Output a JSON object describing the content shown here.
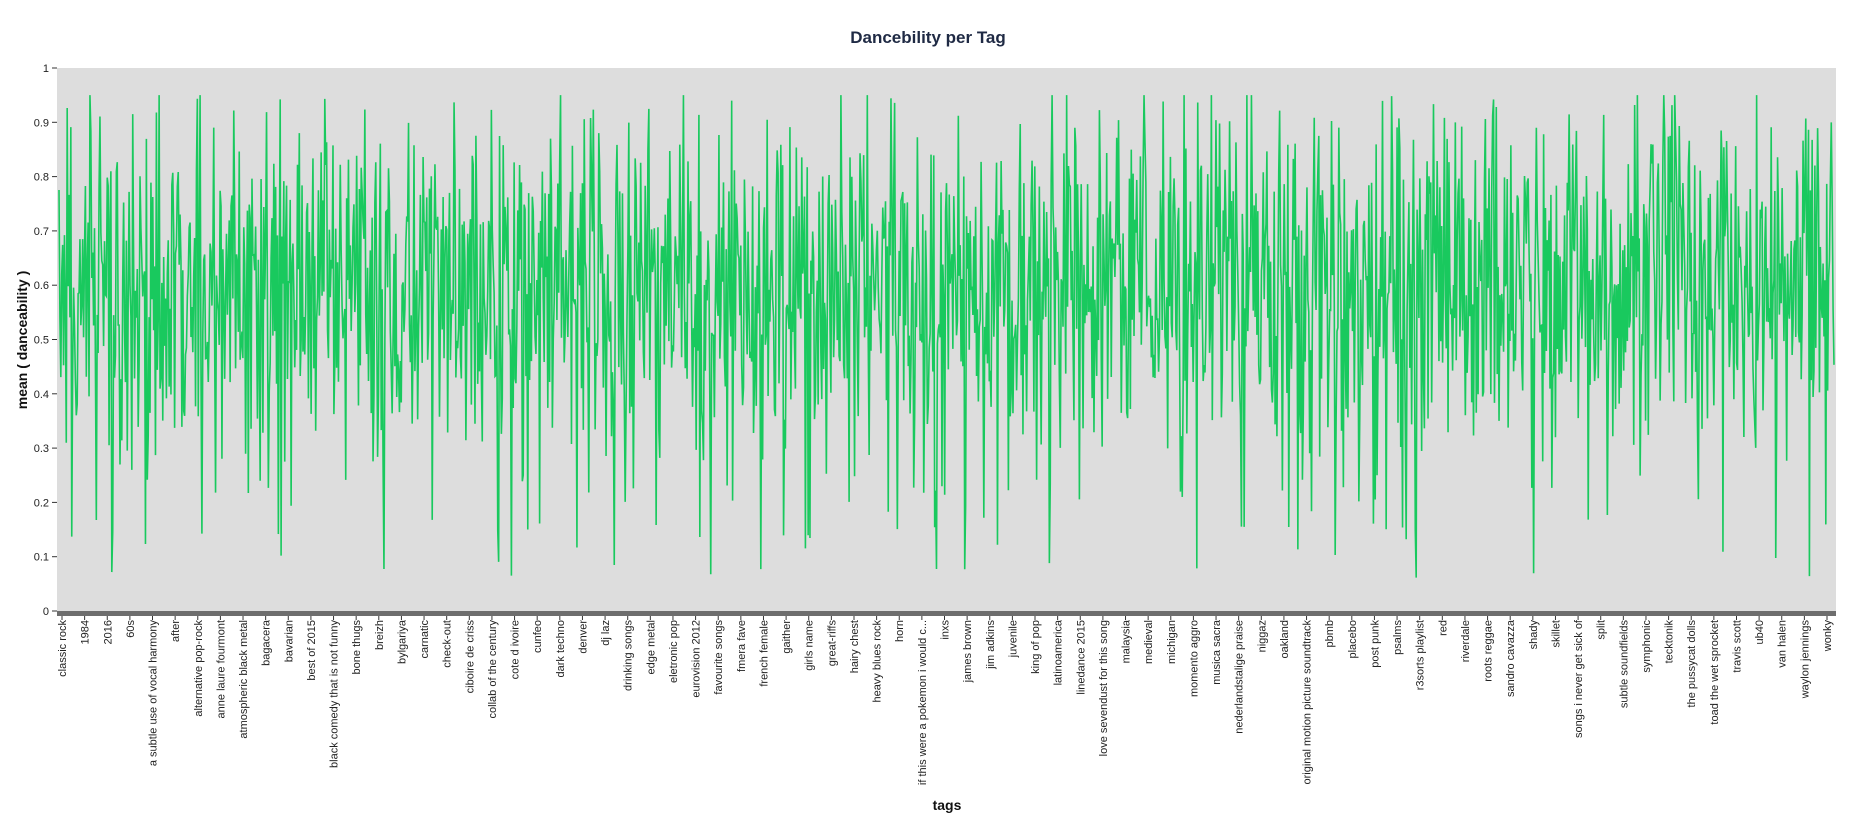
{
  "chart_data": {
    "type": "line",
    "title": "Dancebility per Tag",
    "xlabel": "tags",
    "ylabel": "mean ( danceability )",
    "ylim": [
      0,
      1
    ],
    "yticks": [
      0,
      0.1,
      0.2,
      0.3,
      0.4,
      0.5,
      0.6,
      0.7,
      0.8,
      0.9,
      1
    ],
    "ytick_labels": [
      "0",
      "0.1",
      "0.2",
      "0.3",
      "0.4",
      "0.5",
      "0.6",
      "0.7",
      "0.8",
      "0.9",
      "1"
    ],
    "grid": false,
    "background": "#dddddd",
    "line_color": "#19c95e",
    "points_per_tick": 25,
    "x_tick_labels": [
      "classic rock",
      "1984",
      "2016",
      "60s",
      "a subtle use of vocal harmony",
      "after",
      "alternative pop-rock",
      "anne laure fourmont",
      "atmospheric black metal",
      "bagacera",
      "bavarian",
      "best of 2015",
      "black comedy that is not funny",
      "bone thugs",
      "breizh",
      "bylgariya",
      "carnatic",
      "check-out",
      "ciboire de criss",
      "collab of the century",
      "cote d ivoire",
      "cunfeo",
      "dark techno",
      "denver",
      "dj laz",
      "drinking songs",
      "edge metal",
      "eletronic pop",
      "eurovision 2012",
      "favourite songs",
      "fmera fave",
      "french female",
      "gaither",
      "girls name",
      "great-riffs",
      "hairy chest",
      "heavy blues rock",
      "horn",
      "if this were a pokemon i would c...",
      "inxs",
      "james brown",
      "jim adkins",
      "juvenile",
      "king of pop",
      "latinoamerica",
      "linedance 2015",
      "love sevendust for this song",
      "malaysia",
      "medieval",
      "michigan",
      "momento aggro",
      "musica sacra",
      "nederlandstalige praise",
      "niggaz",
      "oakland",
      "original motion picture soundtrack",
      "pbmb",
      "placebo",
      "post punk",
      "psalms",
      "r3sorts playlist",
      "red",
      "riverdale",
      "roots reggae",
      "sandro cavazza",
      "shady",
      "skillet",
      "songs i never get sick of",
      "split",
      "subtle soundfields",
      "symphonic",
      "tecktonik",
      "the pussycat dolls",
      "toad the wet sprocket",
      "travis scott",
      "ub40",
      "van halen",
      "waylon jennings",
      "wonky"
    ],
    "y_summary": {
      "mean": 0.6,
      "typical_range": [
        0.35,
        0.85
      ],
      "min": 0.06,
      "max": 0.95
    }
  }
}
